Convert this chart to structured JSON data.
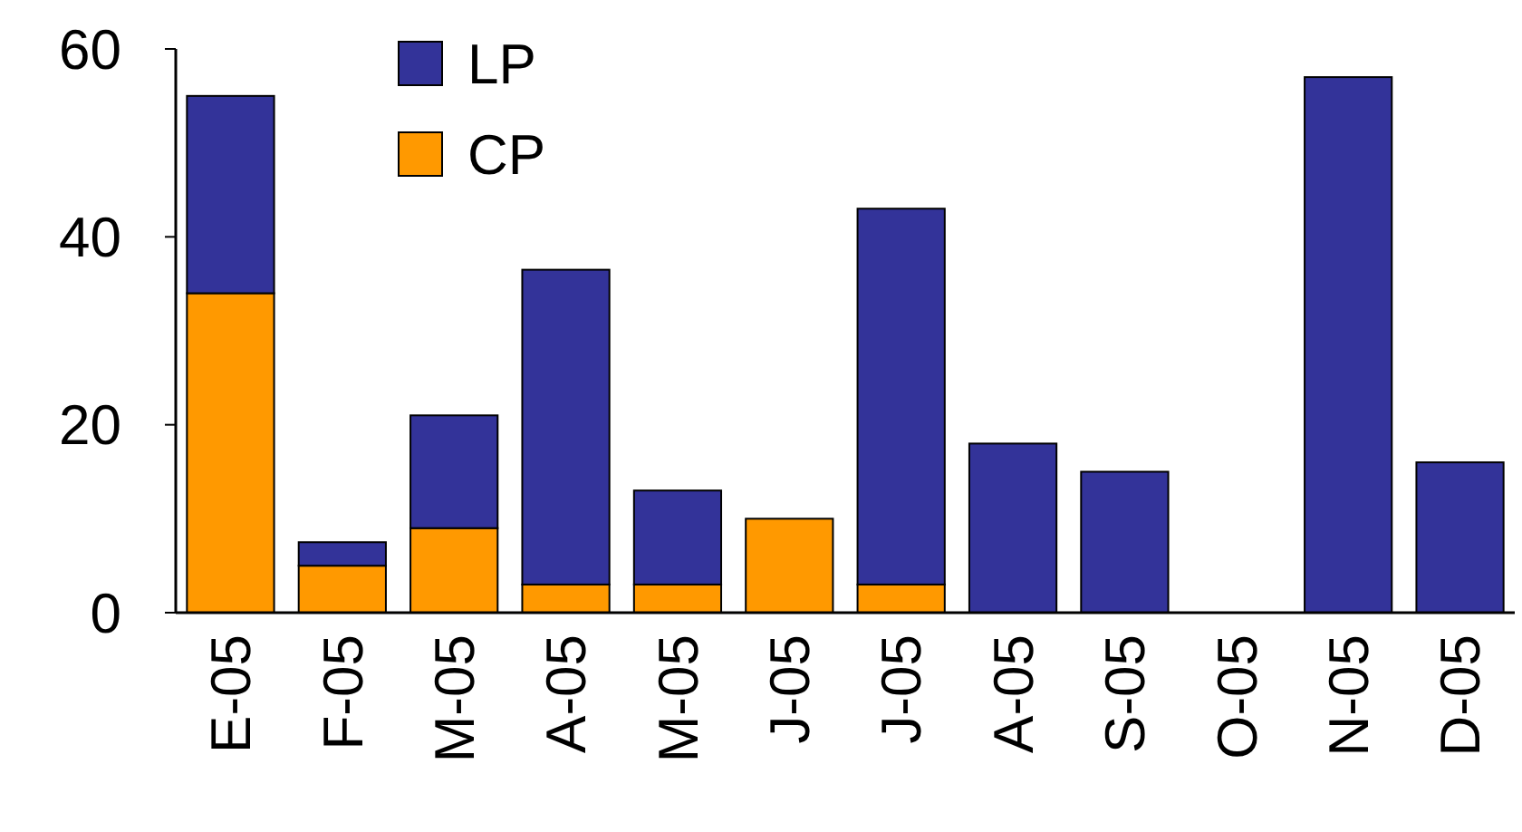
{
  "chart_data": {
    "type": "bar",
    "stacked": true,
    "categories": [
      "E-05",
      "F-05",
      "M-05",
      "A-05",
      "M-05",
      "J-05",
      "J-05",
      "A-05",
      "S-05",
      "O-05",
      "N-05",
      "D-05"
    ],
    "series": [
      {
        "name": "CP",
        "color": "#ff9900",
        "values": [
          34,
          5,
          9,
          3,
          3,
          10,
          3,
          0,
          0,
          0,
          0,
          0
        ]
      },
      {
        "name": "LP",
        "color": "#333399",
        "values": [
          21,
          2.5,
          12,
          33.5,
          10,
          0,
          40,
          18,
          15,
          0,
          57,
          16
        ]
      }
    ],
    "ylim": [
      0,
      60
    ],
    "yticks": [
      0,
      20,
      40,
      60
    ],
    "grid": false,
    "legend": "top left"
  }
}
